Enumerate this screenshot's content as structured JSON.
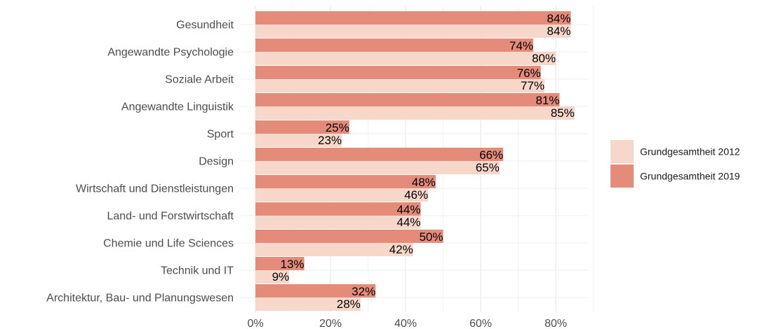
{
  "chart_data": {
    "type": "bar",
    "orientation": "horizontal",
    "categories": [
      "Gesundheit",
      "Angewandte Psychologie",
      "Soziale Arbeit",
      "Angewandte Linguistik",
      "Sport",
      "Design",
      "Wirtschaft und Dienstleistungen",
      "Land- und Forstwirtschaft",
      "Chemie und Life Sciences",
      "Technik und IT",
      "Architektur, Bau- und Planungswesen"
    ],
    "series": [
      {
        "name": "Grundgesamtheit 2019",
        "color": "#e58b7a",
        "values": [
          84,
          74,
          76,
          81,
          25,
          66,
          48,
          44,
          50,
          13,
          32
        ],
        "labels": [
          "84%",
          "74%",
          "76%",
          "81%",
          "25%",
          "66%",
          "48%",
          "44%",
          "50%",
          "13%",
          "32%"
        ]
      },
      {
        "name": "Grundgesamtheit 2012",
        "color": "#f6d7ca",
        "values": [
          84,
          80,
          77,
          85,
          23,
          65,
          46,
          44,
          42,
          9,
          28
        ],
        "labels": [
          "84%",
          "80%",
          "77%",
          "85%",
          "23%",
          "65%",
          "46%",
          "44%",
          "42%",
          "9%",
          "28%"
        ]
      }
    ],
    "xlim": [
      0,
      90
    ],
    "x_ticks": [
      0,
      20,
      40,
      60,
      80
    ],
    "x_tick_labels": [
      "0%",
      "20%",
      "40%",
      "60%",
      "80%"
    ],
    "title": "",
    "xlabel": "",
    "ylabel": "",
    "grid": true,
    "legend": {
      "placement": "right",
      "entries": [
        {
          "name": "Grundgesamtheit 2012",
          "color": "#f6d7ca"
        },
        {
          "name": "Grundgesamtheit 2019",
          "color": "#e58b7a"
        }
      ]
    }
  }
}
